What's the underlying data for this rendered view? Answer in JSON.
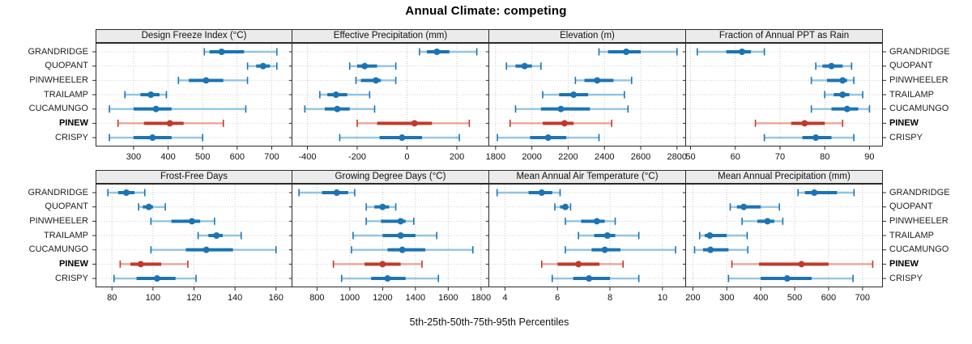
{
  "title": "Annual Climate: competing",
  "caption": "5th-25th-50th-75th-95th Percentiles",
  "sites": [
    "GRANDRIDGE",
    "QUOPANT",
    "PINWHEELER",
    "TRAILAMP",
    "CUCAMUNGO",
    "PINEW",
    "CRISPY"
  ],
  "highlight_site": "PINEW",
  "colors": {
    "series_blue": "#1B74B4",
    "series_blue_light": "#93C5E0",
    "highlight_red": "#C03A2B",
    "highlight_red_light": "#EBA49C",
    "grid_line": "#c6c6c6",
    "row_line": "#d2d2d2",
    "panel_border": "#2b2b2b",
    "strip_background": "#ebebeb"
  },
  "chart_data": {
    "type": "dotplot",
    "title": "Annual Climate: competing",
    "xlabel": "5th-25th-50th-75th-95th Percentiles",
    "percentiles": [
      5,
      25,
      50,
      75,
      95
    ],
    "categories": [
      "GRANDRIDGE",
      "QUOPANT",
      "PINWHEELER",
      "TRAILAMP",
      "CUCAMUNGO",
      "PINEW",
      "CRISPY"
    ],
    "highlight": "PINEW",
    "layout": "2 rows x 4 columns, category labels on both sides, x axis below each row",
    "panels": [
      {
        "title": "Design Freeze Index (°C)",
        "xlim": [
          190,
          760
        ],
        "ticks": [
          300,
          400,
          500,
          600,
          700
        ],
        "values": [
          [
            505,
            520,
            555,
            620,
            715
          ],
          [
            630,
            655,
            675,
            695,
            715
          ],
          [
            430,
            460,
            510,
            560,
            630
          ],
          [
            275,
            320,
            350,
            375,
            395
          ],
          [
            230,
            300,
            365,
            410,
            625
          ],
          [
            255,
            330,
            405,
            445,
            560
          ],
          [
            230,
            300,
            355,
            410,
            500
          ]
        ]
      },
      {
        "title": "Effective Precipitation (mm)",
        "xlim": [
          -460,
          330
        ],
        "ticks": [
          -400,
          -200,
          0,
          200
        ],
        "values": [
          [
            50,
            80,
            120,
            170,
            280
          ],
          [
            -230,
            -200,
            -170,
            -120,
            -45
          ],
          [
            -205,
            -185,
            -125,
            -105,
            -45
          ],
          [
            -350,
            -320,
            -285,
            -240,
            -150
          ],
          [
            -410,
            -330,
            -280,
            -230,
            -130
          ],
          [
            -200,
            -120,
            30,
            100,
            250
          ],
          [
            -270,
            -110,
            -20,
            60,
            210
          ]
        ]
      },
      {
        "title": "Elevation (m)",
        "xlim": [
          1765,
          2850
        ],
        "ticks": [
          1800,
          2000,
          2200,
          2400,
          2600,
          2800
        ],
        "values": [
          [
            2370,
            2420,
            2520,
            2600,
            2800
          ],
          [
            1860,
            1910,
            1960,
            2000,
            2050
          ],
          [
            2240,
            2290,
            2360,
            2450,
            2550
          ],
          [
            2060,
            2150,
            2230,
            2310,
            2510
          ],
          [
            1910,
            2050,
            2160,
            2320,
            2530
          ],
          [
            1880,
            2060,
            2180,
            2230,
            2440
          ],
          [
            1810,
            1990,
            2090,
            2190,
            2370
          ]
        ]
      },
      {
        "title": "Fraction of Annual PPT as Rain",
        "xlim": [
          49,
          93
        ],
        "ticks": [
          50,
          60,
          70,
          80,
          90
        ],
        "values": [
          [
            51.5,
            58,
            61.5,
            63.5,
            66.5
          ],
          [
            78,
            79.5,
            81.5,
            84,
            86
          ],
          [
            77,
            80.5,
            84,
            85,
            86.5
          ],
          [
            80,
            82,
            84,
            85.5,
            88.5
          ],
          [
            77,
            81.5,
            85,
            87.5,
            90
          ],
          [
            64.5,
            72.5,
            75.5,
            80,
            84
          ],
          [
            66.5,
            75,
            78,
            81.5,
            86.5
          ]
        ]
      },
      {
        "title": "Frost-Free Days",
        "xlim": [
          72,
          168
        ],
        "ticks": [
          80,
          100,
          120,
          140,
          160
        ],
        "values": [
          [
            78,
            83,
            87,
            91,
            96
          ],
          [
            93,
            95,
            98,
            100,
            106
          ],
          [
            99,
            109,
            119,
            123,
            130
          ],
          [
            122,
            127,
            131,
            134,
            143
          ],
          [
            99,
            116,
            126,
            139,
            160
          ],
          [
            84,
            89,
            94,
            104,
            117
          ],
          [
            81,
            92,
            102,
            111,
            121
          ]
        ]
      },
      {
        "title": "Growing Degree Days (°C)",
        "xlim": [
          650,
          1850
        ],
        "ticks": [
          800,
          1000,
          1200,
          1400,
          1600,
          1800
        ],
        "values": [
          [
            690,
            830,
            920,
            990,
            1030
          ],
          [
            1100,
            1150,
            1200,
            1240,
            1280
          ],
          [
            1100,
            1190,
            1310,
            1340,
            1390
          ],
          [
            1020,
            1200,
            1310,
            1400,
            1530
          ],
          [
            1010,
            1230,
            1320,
            1460,
            1750
          ],
          [
            900,
            1090,
            1200,
            1310,
            1440
          ],
          [
            950,
            1130,
            1230,
            1340,
            1540
          ]
        ]
      },
      {
        "title": "Mean Annual Air Temperature (°C)",
        "xlim": [
          3.4,
          10.9
        ],
        "ticks": [
          4,
          6,
          8,
          10
        ],
        "values": [
          [
            3.7,
            4.9,
            5.4,
            5.8,
            6.1
          ],
          [
            5.9,
            6.1,
            6.3,
            6.4,
            6.5
          ],
          [
            6.3,
            6.9,
            7.5,
            7.8,
            8.2
          ],
          [
            6.8,
            7.4,
            7.9,
            8.2,
            9.1
          ],
          [
            6.3,
            7.3,
            7.8,
            8.4,
            10.5
          ],
          [
            5.4,
            6.0,
            6.8,
            7.6,
            8.5
          ],
          [
            5.8,
            6.6,
            7.2,
            8.0,
            9.1
          ]
        ]
      },
      {
        "title": "Mean Annual Precipitation (mm)",
        "xlim": [
          180,
          760
        ],
        "ticks": [
          200,
          300,
          400,
          500,
          600,
          700
        ],
        "values": [
          [
            510,
            530,
            558,
            625,
            675
          ],
          [
            310,
            330,
            350,
            400,
            455
          ],
          [
            345,
            390,
            420,
            440,
            465
          ],
          [
            220,
            235,
            250,
            300,
            360
          ],
          [
            205,
            230,
            252,
            305,
            362
          ],
          [
            315,
            395,
            520,
            600,
            730
          ],
          [
            305,
            400,
            478,
            550,
            672
          ]
        ]
      }
    ]
  }
}
